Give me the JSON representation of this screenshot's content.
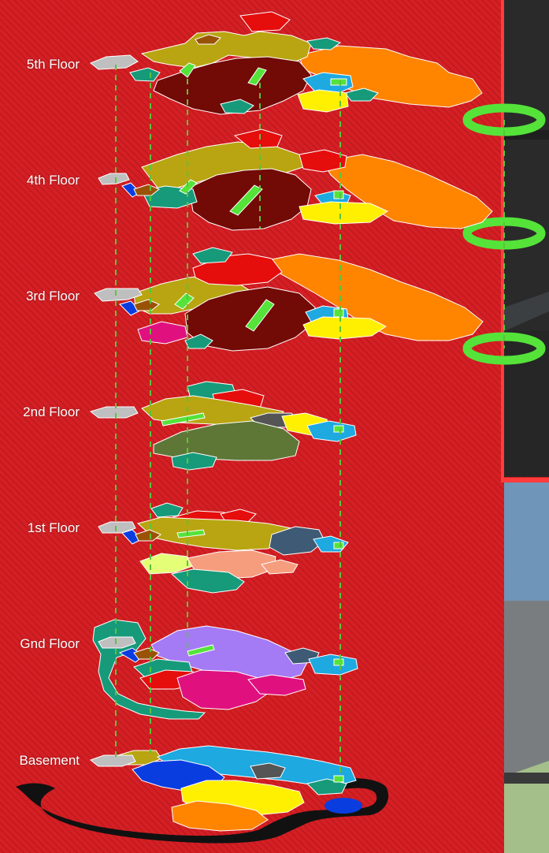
{
  "floors": [
    {
      "id": "5",
      "label": "5th Floor"
    },
    {
      "id": "4",
      "label": "4th Floor"
    },
    {
      "id": "3",
      "label": "3rd Floor"
    },
    {
      "id": "2",
      "label": "2nd Floor"
    },
    {
      "id": "1",
      "label": "1st Floor"
    },
    {
      "id": "G",
      "label": "Gnd Floor"
    },
    {
      "id": "B",
      "label": "Basement"
    }
  ],
  "colors": {
    "background": "#d41f24",
    "hatch": "#8c0d10",
    "olive": "#b8a511",
    "orange": "#ff8400",
    "maroon": "#720a06",
    "teal": "#169a7a",
    "cyan": "#1ea9e0",
    "yellow": "#ffef00",
    "red": "#e60d0d",
    "green_link": "#55e33a",
    "magenta": "#e0117f",
    "lavender": "#a57af5",
    "olive_dark": "#5e7737",
    "salmon": "#f59d7d",
    "lime": "#e4ff77",
    "slate": "#3f5a74",
    "blue": "#0a3de0",
    "brown": "#9a5306",
    "grey": "#bfbfbf",
    "dark_grey": "#555555",
    "black": "#111111"
  }
}
